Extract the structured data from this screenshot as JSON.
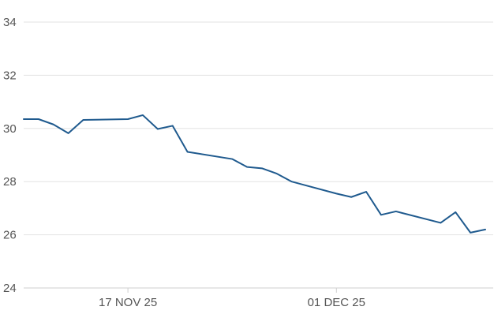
{
  "chart_data": {
    "type": "line",
    "x": [
      "2025-11-10",
      "2025-11-11",
      "2025-11-12",
      "2025-11-13",
      "2025-11-14",
      "2025-11-17",
      "2025-11-18",
      "2025-11-19",
      "2025-11-20",
      "2025-11-21",
      "2025-11-24",
      "2025-11-25",
      "2025-11-26",
      "2025-11-27",
      "2025-11-28",
      "2025-12-01",
      "2025-12-02",
      "2025-12-03",
      "2025-12-04",
      "2025-12-05",
      "2025-12-08",
      "2025-12-09",
      "2025-12-10"
    ],
    "series": [
      {
        "values": [
          30.35,
          30.35,
          30.15,
          29.82,
          30.32,
          30.35,
          30.5,
          29.98,
          30.1,
          29.12,
          28.85,
          28.55,
          28.5,
          28.3,
          28.0,
          27.55,
          27.42,
          27.62,
          26.75,
          26.88,
          26.45,
          26.85,
          26.08
        ],
        "color": "#1f5a8e"
      }
    ],
    "extra_point": {
      "x": "2025-12-11",
      "y": 26.2
    },
    "ylim": [
      24,
      34
    ],
    "y_ticks": [
      24,
      26,
      28,
      30,
      32,
      34
    ],
    "x_tick_labels": [
      {
        "date": "2025-11-17",
        "label": "17 NOV 25"
      },
      {
        "date": "2025-12-01",
        "label": "01 DEC 25"
      }
    ],
    "xlim": [
      "2025-11-10",
      "2025-12-11"
    ],
    "title": "",
    "xlabel": "",
    "ylabel": "",
    "grid": true,
    "legend": "none"
  }
}
